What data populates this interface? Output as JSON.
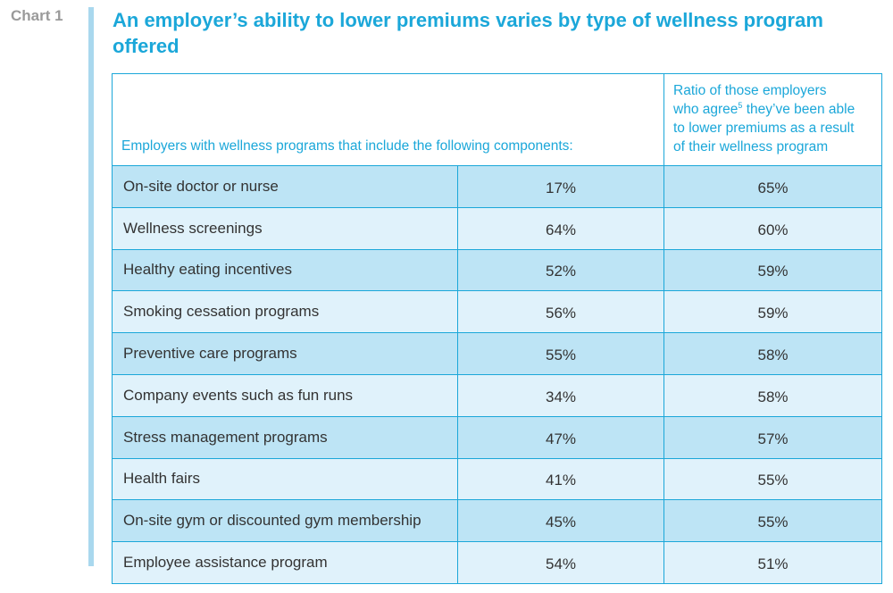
{
  "chart_label": "Chart 1",
  "title": "An employer’s ability to lower premiums varies by type of wellness program offered",
  "chart_data": {
    "type": "table",
    "title": "An employer’s ability to lower premiums varies by type of wellness program offered",
    "columns": {
      "component_header": "Employers with wellness programs that include the following components:",
      "ratio_header_lines": [
        "Ratio of those employers",
        "who agree",
        "5",
        " they’ve been able",
        "to lower premiums as a result",
        "of their wellness program"
      ]
    },
    "rows": [
      {
        "component": "On-site doctor or nurse",
        "share": "17%",
        "ratio": "65%"
      },
      {
        "component": "Wellness screenings",
        "share": "64%",
        "ratio": "60%"
      },
      {
        "component": "Healthy eating incentives",
        "share": "52%",
        "ratio": "59%"
      },
      {
        "component": "Smoking cessation programs",
        "share": "56%",
        "ratio": "59%"
      },
      {
        "component": "Preventive care programs",
        "share": "55%",
        "ratio": "58%"
      },
      {
        "component": "Company events such as fun runs",
        "share": "34%",
        "ratio": "58%"
      },
      {
        "component": "Stress management programs",
        "share": "47%",
        "ratio": "57%"
      },
      {
        "component": "Health fairs",
        "share": "41%",
        "ratio": "55%"
      },
      {
        "component": "On-site gym or discounted gym membership",
        "share": "45%",
        "ratio": "55%"
      },
      {
        "component": "Employee assistance program",
        "share": "54%",
        "ratio": "51%"
      }
    ],
    "colors": {
      "accent": "#1ba7d9",
      "row_dark": "#bde4f5",
      "row_light": "#e0f2fb",
      "label_gray": "#9a9a9a",
      "side_bar": "#a9d8ee"
    }
  }
}
